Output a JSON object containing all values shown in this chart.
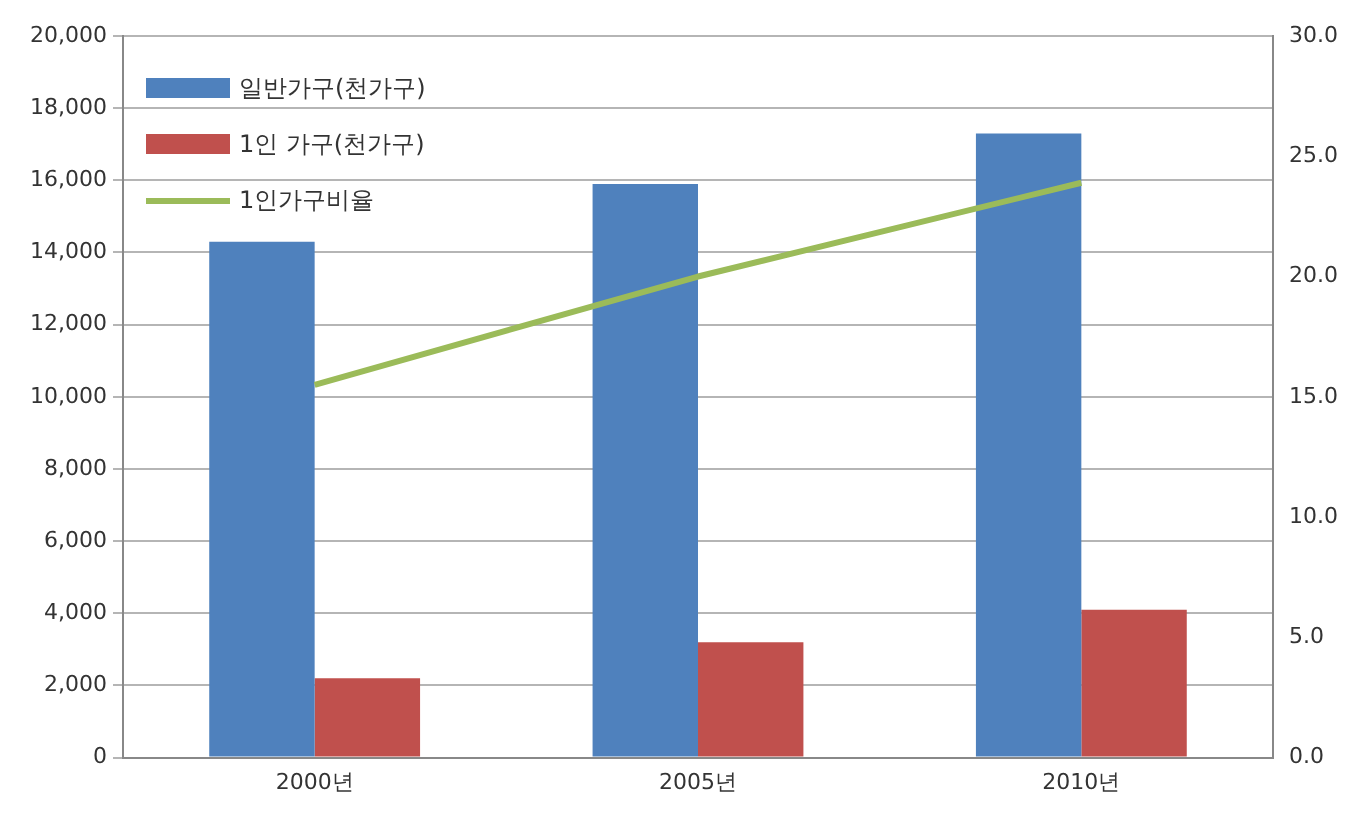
{
  "chart_data": {
    "type": "bar",
    "categories": [
      "2000년",
      "2005년",
      "2010년"
    ],
    "series": [
      {
        "name": "일반가구(천가구)",
        "color": "#4f81bd",
        "values": [
          14300,
          15900,
          17300
        ]
      },
      {
        "name": "1인 가구(천가구)",
        "color": "#c0504d",
        "values": [
          2200,
          3200,
          4100
        ]
      },
      {
        "name": "1인가구비율",
        "type": "line",
        "axis": "y2",
        "color": "#9bbb59",
        "values": [
          15.5,
          20.0,
          23.9
        ]
      }
    ],
    "ylim": [
      0,
      20000
    ],
    "yticks": [
      0,
      {
        "value": 2000,
        "label": "2,000"
      },
      {
        "value": 4000,
        "label": "4,000"
      },
      {
        "value": 6000,
        "label": "6,000"
      },
      {
        "value": 8000,
        "label": "8,000"
      },
      {
        "value": 10000,
        "label": "10,000"
      },
      {
        "value": 12000,
        "label": "12,000"
      },
      {
        "value": 14000,
        "label": "14,000"
      },
      {
        "value": 16000,
        "label": "16,000"
      },
      {
        "value": 18000,
        "label": "18,000"
      },
      {
        "value": 20000,
        "label": "20,000"
      }
    ],
    "y2lim": [
      0,
      30
    ],
    "y2ticks": [
      {
        "value": 0,
        "label": "0.0"
      },
      {
        "value": 5,
        "label": "5.0"
      },
      {
        "value": 10,
        "label": "10.0"
      },
      {
        "value": 15,
        "label": "15.0"
      },
      {
        "value": 20,
        "label": "20.0"
      },
      {
        "value": 25,
        "label": "25.0"
      },
      {
        "value": 30,
        "label": "30.0"
      }
    ],
    "grid": "y",
    "legend": "top left",
    "marker": "none",
    "line_style": "solid"
  }
}
